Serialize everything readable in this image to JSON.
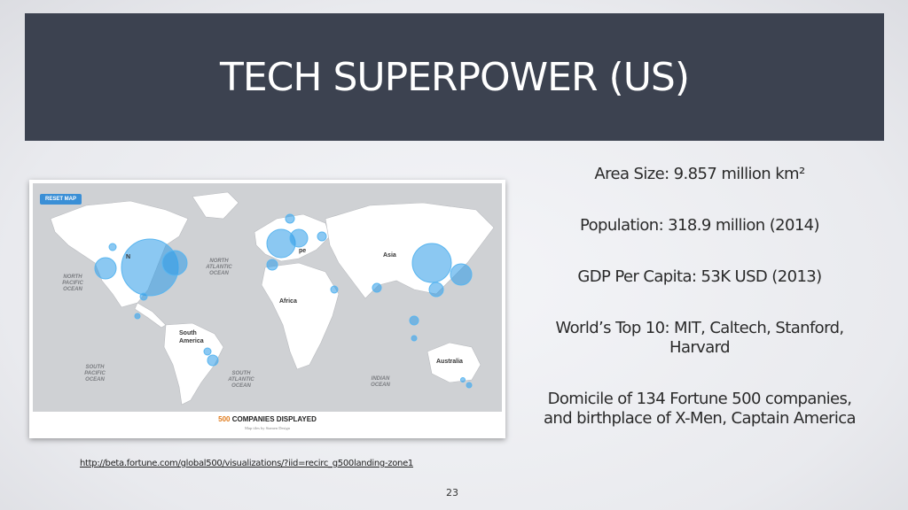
{
  "slide": {
    "title": "TECH SUPERPOWER (US)",
    "page_number": "23",
    "source_url": "http://beta.fortune.com/global500/visualizations/?iid=recirc_g500landing-zone1"
  },
  "map": {
    "reset_label": "RESET MAP",
    "footer_count": "500",
    "footer_text": " COMPANIES DISPLAYED",
    "tiles_credit": "Map tiles by Stamen Design",
    "continents": [
      "Asia",
      "Africa",
      "South America",
      "Australia",
      "pe",
      "N"
    ],
    "oceans": [
      "NORTH PACIFIC OCEAN",
      "NORTH ATLANTIC OCEAN",
      "SOUTH PACIFIC OCEAN",
      "SOUTH ATLANTIC OCEAN",
      "INDIAN OCEAN"
    ],
    "colors": {
      "marker": "#2b9be8",
      "land": "#ffffff",
      "water": "#cfd1d4",
      "footer_count": "#e07a1a"
    }
  },
  "facts": [
    "Area Size: 9.857 million km²",
    "Population: 318.9 million (2014)",
    "GDP Per Capita: 53K USD (2013)",
    "World’s Top 10: MIT, Caltech, Stanford, Harvard",
    "Domicile of 134 Fortune 500 companies, and birthplace of X-Men, Captain America"
  ],
  "colors": {
    "title_bar": "#3c4250",
    "title_text": "#ffffff"
  }
}
